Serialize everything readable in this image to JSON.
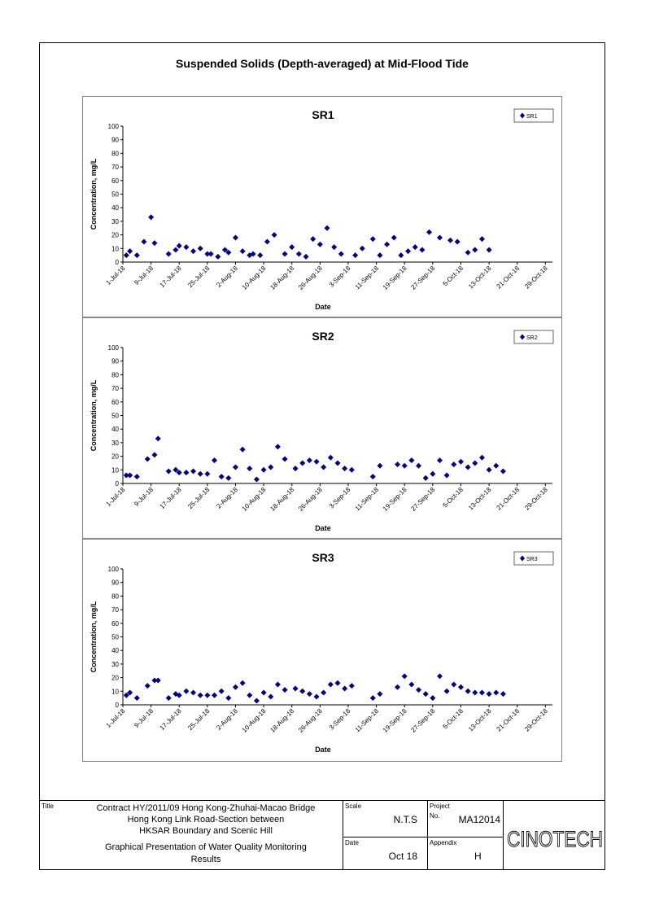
{
  "page": {
    "main_title": "Suspended Solids (Depth-averaged) at Mid-Flood Tide"
  },
  "chart_data": [
    {
      "type": "scatter",
      "title": "SR1",
      "xlabel": "Date",
      "ylabel": "Concentration, mg/L",
      "ylim": [
        0,
        100
      ],
      "yticks": [
        0,
        10,
        20,
        30,
        40,
        50,
        60,
        70,
        80,
        90,
        100
      ],
      "x_axis": {
        "start": "2018-07-01",
        "end": "2018-10-31",
        "tick_step_days": 8
      },
      "xtick_labels": [
        "1-Jul-18",
        "9-Jul-18",
        "17-Jul-18",
        "25-Jul-18",
        "2-Aug-18",
        "10-Aug-18",
        "18-Aug-18",
        "26-Aug-18",
        "3-Sep-18",
        "11-Sep-18",
        "19-Sep-18",
        "27-Sep-18",
        "5-Oct-18",
        "13-Oct-18",
        "21-Oct-18",
        "29-Oct-18"
      ],
      "legend": {
        "label": "SR1",
        "position": "top-right"
      },
      "marker_color": "#000080",
      "grid": false,
      "series": [
        {
          "name": "SR1",
          "points": [
            {
              "x": "2018-07-02",
              "y": 5
            },
            {
              "x": "2018-07-03",
              "y": 8
            },
            {
              "x": "2018-07-05",
              "y": 5
            },
            {
              "x": "2018-07-07",
              "y": 15
            },
            {
              "x": "2018-07-09",
              "y": 33
            },
            {
              "x": "2018-07-10",
              "y": 14
            },
            {
              "x": "2018-07-14",
              "y": 6
            },
            {
              "x": "2018-07-16",
              "y": 9
            },
            {
              "x": "2018-07-17",
              "y": 12
            },
            {
              "x": "2018-07-19",
              "y": 11
            },
            {
              "x": "2018-07-21",
              "y": 8
            },
            {
              "x": "2018-07-23",
              "y": 10
            },
            {
              "x": "2018-07-25",
              "y": 6
            },
            {
              "x": "2018-07-26",
              "y": 6
            },
            {
              "x": "2018-07-28",
              "y": 4
            },
            {
              "x": "2018-07-30",
              "y": 9
            },
            {
              "x": "2018-07-31",
              "y": 7
            },
            {
              "x": "2018-08-02",
              "y": 18
            },
            {
              "x": "2018-08-04",
              "y": 8
            },
            {
              "x": "2018-08-06",
              "y": 5
            },
            {
              "x": "2018-08-07",
              "y": 6
            },
            {
              "x": "2018-08-09",
              "y": 5
            },
            {
              "x": "2018-08-11",
              "y": 15
            },
            {
              "x": "2018-08-13",
              "y": 20
            },
            {
              "x": "2018-08-16",
              "y": 6
            },
            {
              "x": "2018-08-18",
              "y": 11
            },
            {
              "x": "2018-08-20",
              "y": 6
            },
            {
              "x": "2018-08-22",
              "y": 4
            },
            {
              "x": "2018-08-24",
              "y": 17
            },
            {
              "x": "2018-08-26",
              "y": 13
            },
            {
              "x": "2018-08-28",
              "y": 25
            },
            {
              "x": "2018-08-30",
              "y": 11
            },
            {
              "x": "2018-09-01",
              "y": 6
            },
            {
              "x": "2018-09-05",
              "y": 5
            },
            {
              "x": "2018-09-07",
              "y": 10
            },
            {
              "x": "2018-09-10",
              "y": 17
            },
            {
              "x": "2018-09-12",
              "y": 5
            },
            {
              "x": "2018-09-14",
              "y": 13
            },
            {
              "x": "2018-09-16",
              "y": 18
            },
            {
              "x": "2018-09-18",
              "y": 5
            },
            {
              "x": "2018-09-20",
              "y": 8
            },
            {
              "x": "2018-09-22",
              "y": 11
            },
            {
              "x": "2018-09-24",
              "y": 9
            },
            {
              "x": "2018-09-26",
              "y": 22
            },
            {
              "x": "2018-09-29",
              "y": 18
            },
            {
              "x": "2018-10-02",
              "y": 16
            },
            {
              "x": "2018-10-04",
              "y": 15
            },
            {
              "x": "2018-10-07",
              "y": 7
            },
            {
              "x": "2018-10-09",
              "y": 9
            },
            {
              "x": "2018-10-11",
              "y": 17
            },
            {
              "x": "2018-10-13",
              "y": 9
            }
          ]
        }
      ]
    },
    {
      "type": "scatter",
      "title": "SR2",
      "xlabel": "Date",
      "ylabel": "Concentration, mg/L",
      "ylim": [
        0,
        100
      ],
      "yticks": [
        0,
        10,
        20,
        30,
        40,
        50,
        60,
        70,
        80,
        90,
        100
      ],
      "x_axis": {
        "start": "2018-07-01",
        "end": "2018-10-31",
        "tick_step_days": 8
      },
      "xtick_labels": [
        "1-Jul-18",
        "9-Jul-18",
        "17-Jul-18",
        "25-Jul-18",
        "2-Aug-18",
        "10-Aug-18",
        "18-Aug-18",
        "26-Aug-18",
        "3-Sep-18",
        "11-Sep-18",
        "19-Sep-18",
        "27-Sep-18",
        "5-Oct-18",
        "13-Oct-18",
        "21-Oct-18",
        "29-Oct-18"
      ],
      "legend": {
        "label": "SR2",
        "position": "top-right"
      },
      "marker_color": "#000080",
      "grid": false,
      "series": [
        {
          "name": "SR2",
          "points": [
            {
              "x": "2018-07-02",
              "y": 6
            },
            {
              "x": "2018-07-03",
              "y": 6
            },
            {
              "x": "2018-07-05",
              "y": 5
            },
            {
              "x": "2018-07-08",
              "y": 18
            },
            {
              "x": "2018-07-10",
              "y": 21
            },
            {
              "x": "2018-07-11",
              "y": 33
            },
            {
              "x": "2018-07-14",
              "y": 9
            },
            {
              "x": "2018-07-16",
              "y": 10
            },
            {
              "x": "2018-07-17",
              "y": 8
            },
            {
              "x": "2018-07-19",
              "y": 8
            },
            {
              "x": "2018-07-21",
              "y": 9
            },
            {
              "x": "2018-07-23",
              "y": 7
            },
            {
              "x": "2018-07-25",
              "y": 7
            },
            {
              "x": "2018-07-27",
              "y": 17
            },
            {
              "x": "2018-07-29",
              "y": 5
            },
            {
              "x": "2018-07-31",
              "y": 4
            },
            {
              "x": "2018-08-02",
              "y": 12
            },
            {
              "x": "2018-08-04",
              "y": 25
            },
            {
              "x": "2018-08-06",
              "y": 11
            },
            {
              "x": "2018-08-08",
              "y": 3
            },
            {
              "x": "2018-08-10",
              "y": 10
            },
            {
              "x": "2018-08-12",
              "y": 12
            },
            {
              "x": "2018-08-14",
              "y": 27
            },
            {
              "x": "2018-08-16",
              "y": 18
            },
            {
              "x": "2018-08-19",
              "y": 11
            },
            {
              "x": "2018-08-21",
              "y": 15
            },
            {
              "x": "2018-08-23",
              "y": 17
            },
            {
              "x": "2018-08-25",
              "y": 16
            },
            {
              "x": "2018-08-27",
              "y": 12
            },
            {
              "x": "2018-08-29",
              "y": 19
            },
            {
              "x": "2018-08-31",
              "y": 15
            },
            {
              "x": "2018-09-02",
              "y": 11
            },
            {
              "x": "2018-09-04",
              "y": 10
            },
            {
              "x": "2018-09-10",
              "y": 5
            },
            {
              "x": "2018-09-12",
              "y": 13
            },
            {
              "x": "2018-09-17",
              "y": 14
            },
            {
              "x": "2018-09-19",
              "y": 13
            },
            {
              "x": "2018-09-21",
              "y": 17
            },
            {
              "x": "2018-09-23",
              "y": 13
            },
            {
              "x": "2018-09-25",
              "y": 4
            },
            {
              "x": "2018-09-27",
              "y": 7
            },
            {
              "x": "2018-09-29",
              "y": 17
            },
            {
              "x": "2018-10-01",
              "y": 6
            },
            {
              "x": "2018-10-03",
              "y": 14
            },
            {
              "x": "2018-10-05",
              "y": 16
            },
            {
              "x": "2018-10-07",
              "y": 12
            },
            {
              "x": "2018-10-09",
              "y": 15
            },
            {
              "x": "2018-10-11",
              "y": 19
            },
            {
              "x": "2018-10-13",
              "y": 10
            },
            {
              "x": "2018-10-15",
              "y": 13
            },
            {
              "x": "2018-10-17",
              "y": 9
            }
          ]
        }
      ]
    },
    {
      "type": "scatter",
      "title": "SR3",
      "xlabel": "Date",
      "ylabel": "Concentration, mg/L",
      "ylim": [
        0,
        100
      ],
      "yticks": [
        0,
        10,
        20,
        30,
        40,
        50,
        60,
        70,
        80,
        90,
        100
      ],
      "x_axis": {
        "start": "2018-07-01",
        "end": "2018-10-31",
        "tick_step_days": 8
      },
      "xtick_labels": [
        "1-Jul-18",
        "9-Jul-18",
        "17-Jul-18",
        "25-Jul-18",
        "2-Aug-18",
        "10-Aug-18",
        "18-Aug-18",
        "26-Aug-18",
        "3-Sep-18",
        "11-Sep-18",
        "19-Sep-18",
        "27-Sep-18",
        "5-Oct-18",
        "13-Oct-18",
        "21-Oct-18",
        "29-Oct-18"
      ],
      "legend": {
        "label": "SR3",
        "position": "top-right"
      },
      "marker_color": "#000080",
      "grid": false,
      "series": [
        {
          "name": "SR3",
          "points": [
            {
              "x": "2018-07-02",
              "y": 7
            },
            {
              "x": "2018-07-03",
              "y": 9
            },
            {
              "x": "2018-07-05",
              "y": 5
            },
            {
              "x": "2018-07-08",
              "y": 14
            },
            {
              "x": "2018-07-10",
              "y": 18
            },
            {
              "x": "2018-07-11",
              "y": 18
            },
            {
              "x": "2018-07-14",
              "y": 5
            },
            {
              "x": "2018-07-16",
              "y": 8
            },
            {
              "x": "2018-07-17",
              "y": 7
            },
            {
              "x": "2018-07-19",
              "y": 10
            },
            {
              "x": "2018-07-21",
              "y": 9
            },
            {
              "x": "2018-07-23",
              "y": 7
            },
            {
              "x": "2018-07-25",
              "y": 7
            },
            {
              "x": "2018-07-27",
              "y": 7
            },
            {
              "x": "2018-07-29",
              "y": 10
            },
            {
              "x": "2018-07-31",
              "y": 5
            },
            {
              "x": "2018-08-02",
              "y": 13
            },
            {
              "x": "2018-08-04",
              "y": 16
            },
            {
              "x": "2018-08-06",
              "y": 7
            },
            {
              "x": "2018-08-08",
              "y": 3
            },
            {
              "x": "2018-08-10",
              "y": 9
            },
            {
              "x": "2018-08-12",
              "y": 6
            },
            {
              "x": "2018-08-14",
              "y": 15
            },
            {
              "x": "2018-08-16",
              "y": 11
            },
            {
              "x": "2018-08-19",
              "y": 12
            },
            {
              "x": "2018-08-21",
              "y": 10
            },
            {
              "x": "2018-08-23",
              "y": 8
            },
            {
              "x": "2018-08-25",
              "y": 6
            },
            {
              "x": "2018-08-27",
              "y": 9
            },
            {
              "x": "2018-08-29",
              "y": 15
            },
            {
              "x": "2018-08-31",
              "y": 16
            },
            {
              "x": "2018-09-02",
              "y": 12
            },
            {
              "x": "2018-09-04",
              "y": 14
            },
            {
              "x": "2018-09-10",
              "y": 5
            },
            {
              "x": "2018-09-12",
              "y": 8
            },
            {
              "x": "2018-09-17",
              "y": 13
            },
            {
              "x": "2018-09-19",
              "y": 21
            },
            {
              "x": "2018-09-21",
              "y": 15
            },
            {
              "x": "2018-09-23",
              "y": 11
            },
            {
              "x": "2018-09-25",
              "y": 8
            },
            {
              "x": "2018-09-27",
              "y": 5
            },
            {
              "x": "2018-09-29",
              "y": 21
            },
            {
              "x": "2018-10-01",
              "y": 10
            },
            {
              "x": "2018-10-03",
              "y": 15
            },
            {
              "x": "2018-10-05",
              "y": 13
            },
            {
              "x": "2018-10-07",
              "y": 10
            },
            {
              "x": "2018-10-09",
              "y": 9
            },
            {
              "x": "2018-10-11",
              "y": 9
            },
            {
              "x": "2018-10-13",
              "y": 8
            },
            {
              "x": "2018-10-15",
              "y": 9
            },
            {
              "x": "2018-10-17",
              "y": 8
            }
          ]
        }
      ]
    }
  ],
  "title_block": {
    "title_label": "Title",
    "title_line1": "Contract HY/2011/09 Hong Kong-Zhuhai-Macao Bridge",
    "title_line2": "Hong Kong Link Road-Section between",
    "title_line3": "HKSAR Boundary and Scenic Hill",
    "subtitle_line1": "Graphical Presentation of Water Quality Monitoring",
    "subtitle_line2": "Results",
    "scale_label": "Scale",
    "scale_value": "N.T.S",
    "date_label": "Date",
    "date_value": "Oct 18",
    "project_label": "Project",
    "project_no_label": "No.",
    "project_value": "MA12014",
    "appendix_label": "Appendix",
    "appendix_value": "H",
    "logo_text": "CINOTECH"
  }
}
